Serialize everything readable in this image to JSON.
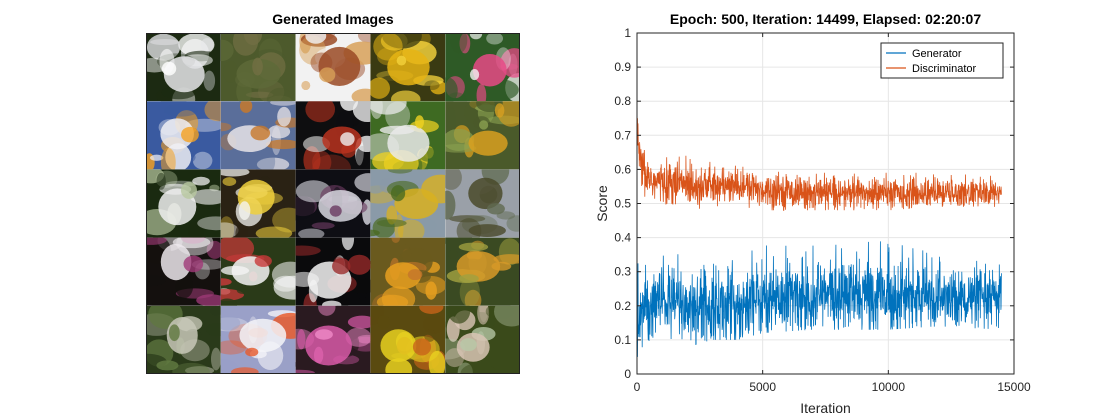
{
  "images_panel": {
    "title": "Generated Images",
    "grid": {
      "rows": 5,
      "cols": 5,
      "tiles": [
        {
          "bg": "#1c2a12",
          "subject": "#e6e6ea",
          "accent": "#ffffff"
        },
        {
          "bg": "#4d5a2c",
          "subject": "#5e6a38",
          "accent": "#726f44"
        },
        {
          "bg": "#f2f2f2",
          "subject": "#9a4a24",
          "accent": "#d8a058"
        },
        {
          "bg": "#3a3a12",
          "subject": "#e6b414",
          "accent": "#f4d23c"
        },
        {
          "bg": "#2e5a26",
          "subject": "#e64a86",
          "accent": "#f4f4f4"
        },
        {
          "bg": "#3a5aa0",
          "subject": "#f0f0f4",
          "accent": "#f4a020"
        },
        {
          "bg": "#5a6e9a",
          "subject": "#e8e4e8",
          "accent": "#c8782a"
        },
        {
          "bg": "#0e0e10",
          "subject": "#b8321e",
          "accent": "#f0f0f0"
        },
        {
          "bg": "#3e6a22",
          "subject": "#eaeaea",
          "accent": "#f0d222"
        },
        {
          "bg": "#4a5a2a",
          "subject": "#d8a020",
          "accent": "#8aa050"
        },
        {
          "bg": "#1a2a10",
          "subject": "#f0f0f0",
          "accent": "#b8c8a0"
        },
        {
          "bg": "#2a2214",
          "subject": "#f0d03c",
          "accent": "#f4f4f0"
        },
        {
          "bg": "#0e0e14",
          "subject": "#d8d8e0",
          "accent": "#6a3a60"
        },
        {
          "bg": "#8a9aa8",
          "subject": "#d8b020",
          "accent": "#4a6a20"
        },
        {
          "bg": "#9aa0a8",
          "subject": "#4a4a2a",
          "accent": "#606a50"
        },
        {
          "bg": "#14100e",
          "subject": "#ece8ec",
          "accent": "#a03a78"
        },
        {
          "bg": "#2a3a18",
          "subject": "#f4f4f4",
          "accent": "#c83a3a"
        },
        {
          "bg": "#0a0a0c",
          "subject": "#f4f4f4",
          "accent": "#9a2a2a"
        },
        {
          "bg": "#6a5a1e",
          "subject": "#e8a020",
          "accent": "#c4762a"
        },
        {
          "bg": "#3a4a22",
          "subject": "#d89a28",
          "accent": "#a0a040"
        },
        {
          "bg": "#2a3a1a",
          "subject": "#c8c8b8",
          "accent": "#607840"
        },
        {
          "bg": "#9aa0c8",
          "subject": "#f4f4f8",
          "accent": "#e85a2a"
        },
        {
          "bg": "#2a1a20",
          "subject": "#d85aa8",
          "accent": "#f08ac8"
        },
        {
          "bg": "#5a4a10",
          "subject": "#e8d020",
          "accent": "#c8641a"
        },
        {
          "bg": "#3a4a1a",
          "subject": "#d8c4b4",
          "accent": "#b8c8a8"
        }
      ]
    }
  },
  "chart_data": {
    "type": "line",
    "title": "Epoch: 500, Iteration: 14499, Elapsed: 02:20:07",
    "xlabel": "Iteration",
    "ylabel": "Score",
    "xlim": [
      0,
      15000
    ],
    "ylim": [
      0,
      1
    ],
    "xticks": [
      0,
      5000,
      10000,
      15000
    ],
    "yticks": [
      0,
      0.1,
      0.2,
      0.3,
      0.4,
      0.5,
      0.6,
      0.7,
      0.8,
      0.9,
      1
    ],
    "grid": true,
    "legend_location": "top-right",
    "x_last": 14499,
    "series": [
      {
        "name": "Generator",
        "color": "#0072BD",
        "trend_x": [
          0,
          200,
          500,
          1000,
          2000,
          3000,
          4000,
          5000,
          7000,
          10000,
          12000,
          14499
        ],
        "trend_mean": [
          0.15,
          0.19,
          0.2,
          0.21,
          0.2,
          0.2,
          0.2,
          0.22,
          0.23,
          0.23,
          0.22,
          0.22
        ],
        "trend_low": [
          0.0,
          0.06,
          0.1,
          0.1,
          0.08,
          0.1,
          0.1,
          0.12,
          0.13,
          0.13,
          0.14,
          0.13
        ],
        "trend_high": [
          0.35,
          0.32,
          0.32,
          0.35,
          0.36,
          0.37,
          0.37,
          0.38,
          0.38,
          0.39,
          0.35,
          0.32
        ]
      },
      {
        "name": "Discriminator",
        "color": "#D95319",
        "trend_x": [
          0,
          100,
          200,
          500,
          1000,
          2000,
          3000,
          4000,
          5000,
          7000,
          10000,
          12000,
          14499
        ],
        "trend_mean": [
          0.75,
          0.62,
          0.6,
          0.57,
          0.56,
          0.56,
          0.55,
          0.55,
          0.54,
          0.53,
          0.53,
          0.53,
          0.53
        ],
        "trend_low": [
          0.65,
          0.52,
          0.5,
          0.5,
          0.5,
          0.48,
          0.49,
          0.49,
          0.48,
          0.48,
          0.48,
          0.49,
          0.49
        ],
        "trend_high": [
          0.81,
          0.7,
          0.66,
          0.65,
          0.64,
          0.64,
          0.62,
          0.61,
          0.6,
          0.59,
          0.59,
          0.59,
          0.58
        ]
      }
    ]
  }
}
